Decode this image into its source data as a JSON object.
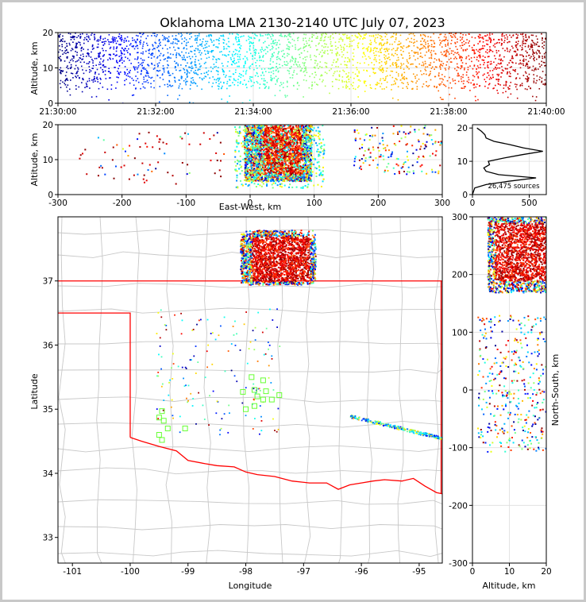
{
  "chart_data": [
    {
      "type": "scatter",
      "panel": "altitude-time",
      "title": "Oklahoma LMA 2130-2140 UTC July 07, 2023",
      "ylabel": "Altitude, km",
      "xlabel": "",
      "ylim": [
        0,
        20
      ],
      "x_tick_labels": [
        "21:30:00",
        "21:32:00",
        "21:34:00",
        "21:36:00",
        "21:38:00",
        "21:40:00"
      ],
      "y_tick_labels": [
        "0",
        "10",
        "20"
      ],
      "colormap": "jet (time)",
      "grid": true,
      "note": "dense sources 5-20 km, colored blue to red by time"
    },
    {
      "type": "scatter",
      "panel": "altitude-east-west",
      "xlabel": "East-West, km",
      "ylabel": "Altitude, km",
      "xlim": [
        -300,
        300
      ],
      "ylim": [
        0,
        20
      ],
      "x_tick_labels": [
        "-300",
        "-200",
        "-100",
        "0",
        "100",
        "200",
        "300"
      ],
      "y_tick_labels": [
        "0",
        "10",
        "20"
      ],
      "grid": true
    },
    {
      "type": "line",
      "panel": "altitude-histogram",
      "xlim": [
        0,
        650
      ],
      "ylim": [
        0,
        21
      ],
      "x_tick_labels": [
        "0",
        "500"
      ],
      "y_tick_labels": [
        "0",
        "10",
        "20"
      ],
      "annotation": "26,475 sources",
      "profile": [
        [
          0,
          0
        ],
        [
          20,
          2
        ],
        [
          120,
          3
        ],
        [
          320,
          4
        ],
        [
          560,
          5
        ],
        [
          230,
          6
        ],
        [
          120,
          7
        ],
        [
          100,
          8
        ],
        [
          150,
          9
        ],
        [
          140,
          10
        ],
        [
          280,
          11
        ],
        [
          440,
          12
        ],
        [
          620,
          13
        ],
        [
          450,
          14
        ],
        [
          330,
          15
        ],
        [
          190,
          16
        ],
        [
          120,
          17
        ],
        [
          110,
          18
        ],
        [
          80,
          19
        ],
        [
          40,
          20
        ]
      ]
    },
    {
      "type": "scatter",
      "panel": "plan-view-map",
      "xlabel": "Longitude",
      "ylabel": "Latitude",
      "xlim": [
        -101.25,
        -94.6
      ],
      "ylim": [
        32.6,
        38.0
      ],
      "x_tick_labels": [
        "-101",
        "-100",
        "-99",
        "-98",
        "-97",
        "-96",
        "-95"
      ],
      "y_tick_labels": [
        "33",
        "34",
        "35",
        "36",
        "37"
      ],
      "state_border_color": "#ff0000",
      "county_line_color": "#c8c8c8",
      "station_color": "#66ff33"
    },
    {
      "type": "scatter",
      "panel": "north-south-altitude",
      "xlabel": "Altitude, km",
      "ylabel": "North-South, km",
      "xlim": [
        0,
        20
      ],
      "ylim": [
        -300,
        300
      ],
      "x_tick_labels": [
        "0",
        "10",
        "20"
      ],
      "y_tick_labels": [
        "-300",
        "-200",
        "-100",
        "0",
        "100",
        "200",
        "300"
      ],
      "grid": true
    }
  ]
}
